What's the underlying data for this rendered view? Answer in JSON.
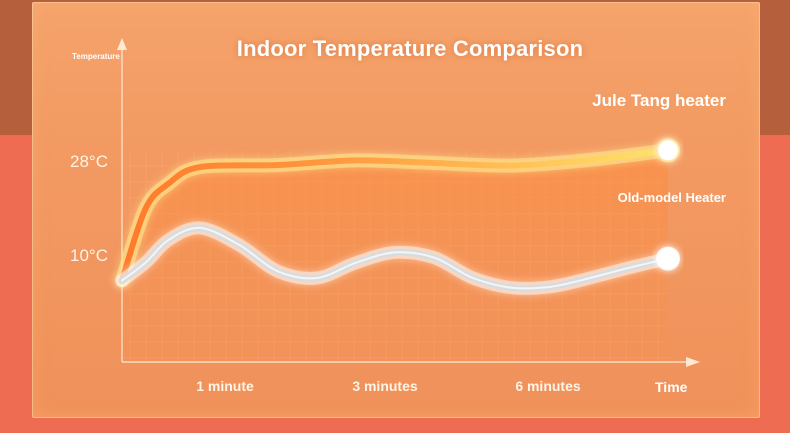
{
  "chart_data": {
    "type": "line",
    "title": "Indoor Temperature Comparison",
    "ylabel": "Temperature",
    "xlabel": "Time",
    "x_ticks": [
      "1 minute",
      "3 minutes",
      "6 minutes"
    ],
    "y_ticks": [
      "28°C",
      "10°C"
    ],
    "series": [
      {
        "name": "Jule Tang heater",
        "color": "#ffd060",
        "points": [
          [
            0,
            5
          ],
          [
            0.3,
            19
          ],
          [
            0.6,
            24
          ],
          [
            1.0,
            27.2
          ],
          [
            2.0,
            27.6
          ],
          [
            3.0,
            28.5
          ],
          [
            4.0,
            28
          ],
          [
            5.0,
            27.5
          ],
          [
            6.0,
            28.6
          ],
          [
            7.0,
            30.5
          ]
        ]
      },
      {
        "name": "Old-model Heater",
        "color": "#d9dcdf",
        "points": [
          [
            0,
            5
          ],
          [
            0.3,
            8.5
          ],
          [
            0.6,
            13
          ],
          [
            1.0,
            15.3
          ],
          [
            1.5,
            12
          ],
          [
            2.0,
            6.8
          ],
          [
            2.5,
            5.5
          ],
          [
            3.0,
            8.5
          ],
          [
            3.5,
            10.5
          ],
          [
            4.0,
            9.5
          ],
          [
            4.5,
            5.5
          ],
          [
            5.0,
            3.6
          ],
          [
            5.5,
            3.8
          ],
          [
            6.0,
            5.5
          ],
          [
            6.5,
            7.5
          ],
          [
            7.0,
            9.3
          ]
        ]
      }
    ]
  }
}
